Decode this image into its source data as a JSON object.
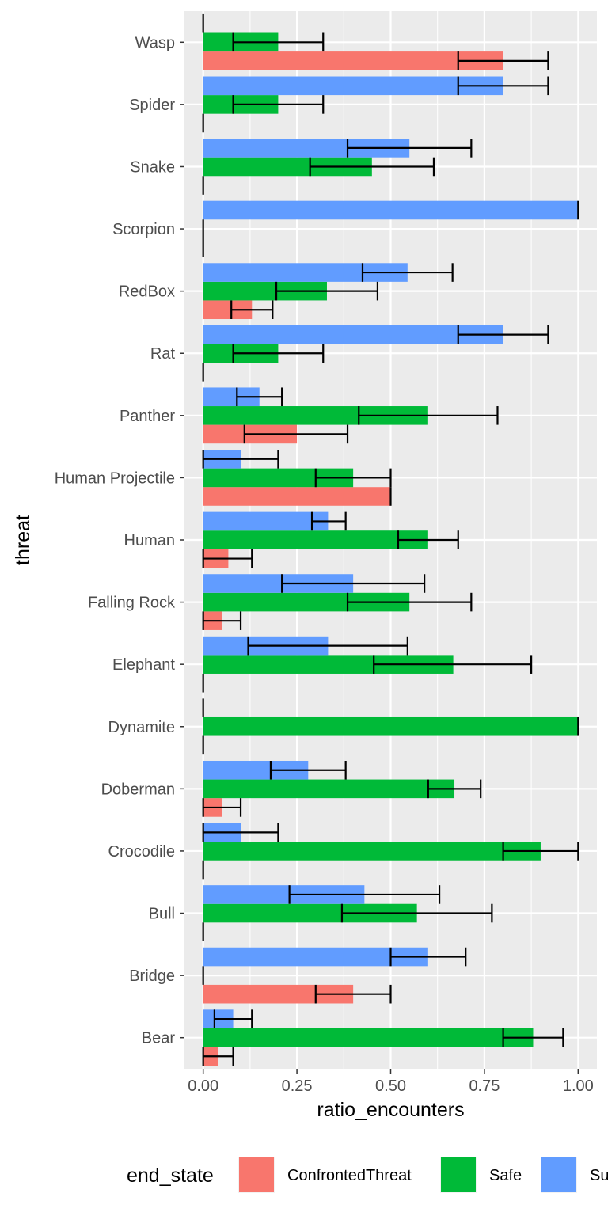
{
  "chart_data": {
    "type": "bar",
    "orientation": "horizontal",
    "grouped": true,
    "xlabel": "ratio_encounters",
    "ylabel": "threat",
    "xlim": [
      -0.05,
      1.05
    ],
    "x_ticks": [
      0,
      0.25,
      0.5,
      0.75,
      1
    ],
    "x_tick_labels": [
      "0.00",
      "0.25",
      "0.50",
      "0.75",
      "1.00"
    ],
    "categories": [
      "Wasp",
      "Spider",
      "Snake",
      "Scorpion",
      "RedBox",
      "Rat",
      "Panther",
      "Human Projectile",
      "Human",
      "Falling Rock",
      "Elephant",
      "Dynamite",
      "Doberman",
      "Crocodile",
      "Bull",
      "Bridge",
      "Bear"
    ],
    "grid": true,
    "background": "#EBEBEB",
    "legend": {
      "title": "end_state",
      "position": "bottom"
    },
    "series": [
      {
        "name": "ConfrontedThreat",
        "color": "#F8766D",
        "values": [
          0.8,
          0,
          0,
          0,
          0.13,
          0,
          0.25,
          0.5,
          0.067,
          0.05,
          0,
          0,
          0.05,
          0,
          0,
          0.4,
          0.04
        ],
        "err_low": [
          0.68,
          null,
          null,
          null,
          0.075,
          null,
          0.11,
          null,
          0,
          0,
          null,
          null,
          0,
          null,
          null,
          0.3,
          0
        ],
        "err_high": [
          0.92,
          null,
          null,
          null,
          0.185,
          null,
          0.385,
          null,
          0.13,
          0.1,
          null,
          null,
          0.1,
          null,
          null,
          0.5,
          0.08
        ]
      },
      {
        "name": "Safe",
        "color": "#00BA38",
        "values": [
          0.2,
          0.2,
          0.45,
          0,
          0.33,
          0.2,
          0.6,
          0.4,
          0.6,
          0.55,
          0.667,
          1.0,
          0.67,
          0.9,
          0.57,
          0,
          0.88
        ],
        "err_low": [
          0.08,
          0.08,
          0.285,
          null,
          0.195,
          0.08,
          0.415,
          0.3,
          0.52,
          0.385,
          0.455,
          null,
          0.6,
          0.8,
          0.37,
          null,
          0.8
        ],
        "err_high": [
          0.32,
          0.32,
          0.615,
          null,
          0.465,
          0.32,
          0.785,
          0.5,
          0.68,
          0.715,
          0.875,
          null,
          0.74,
          1.0,
          0.77,
          null,
          0.96
        ]
      },
      {
        "name": "Su",
        "color": "#619CFF",
        "values": [
          0,
          0.8,
          0.55,
          1.0,
          0.545,
          0.8,
          0.15,
          0.1,
          0.333,
          0.4,
          0.333,
          0,
          0.28,
          0.1,
          0.43,
          0.6,
          0.08
        ],
        "err_low": [
          null,
          0.68,
          0.385,
          null,
          0.425,
          0.68,
          0.09,
          0,
          0.29,
          0.21,
          0.12,
          null,
          0.18,
          0,
          0.23,
          0.5,
          0.03
        ],
        "err_high": [
          null,
          0.92,
          0.715,
          null,
          0.665,
          0.92,
          0.21,
          0.2,
          0.38,
          0.59,
          0.545,
          null,
          0.38,
          0.2,
          0.63,
          0.7,
          0.13
        ]
      }
    ]
  }
}
